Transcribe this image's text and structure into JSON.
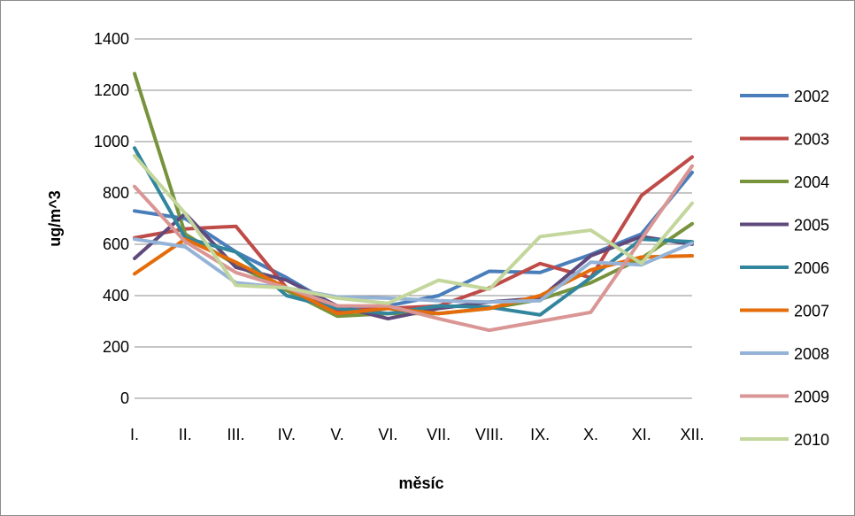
{
  "chart_data": {
    "type": "line",
    "title": "",
    "xlabel": "měsíc",
    "ylabel": "ug/m^3",
    "ylim": [
      0,
      1400
    ],
    "yticks": [
      "0",
      "200",
      "400",
      "600",
      "800",
      "1000",
      "1200",
      "1400"
    ],
    "grid": true,
    "legend_position": "right",
    "categories": [
      "I.",
      "II.",
      "III.",
      "IV.",
      "V.",
      "VI.",
      "VII.",
      "VIII.",
      "IX.",
      "X.",
      "XI.",
      "XII."
    ],
    "series": [
      {
        "name": "2002",
        "color": "#4a7ebb",
        "values": [
          730,
          700,
          570,
          470,
          355,
          360,
          400,
          495,
          490,
          560,
          640,
          880
        ]
      },
      {
        "name": "2003",
        "color": "#be4b48",
        "values": [
          625,
          660,
          670,
          430,
          340,
          350,
          360,
          430,
          525,
          470,
          790,
          940
        ]
      },
      {
        "name": "2004",
        "color": "#77933c",
        "values": [
          1265,
          640,
          520,
          420,
          320,
          330,
          330,
          350,
          385,
          450,
          545,
          680
        ]
      },
      {
        "name": "2005",
        "color": "#604a7b",
        "values": [
          545,
          720,
          510,
          460,
          360,
          310,
          350,
          375,
          390,
          555,
          630,
          600
        ]
      },
      {
        "name": "2006",
        "color": "#31859c",
        "values": [
          975,
          625,
          570,
          400,
          350,
          330,
          360,
          355,
          325,
          470,
          620,
          610
        ]
      },
      {
        "name": "2007",
        "color": "#e46c0a",
        "values": [
          485,
          620,
          530,
          430,
          330,
          350,
          330,
          350,
          400,
          500,
          550,
          555
        ]
      },
      {
        "name": "2008",
        "color": "#95b3d7",
        "values": [
          620,
          590,
          450,
          430,
          395,
          390,
          380,
          375,
          380,
          530,
          520,
          605
        ]
      },
      {
        "name": "2009",
        "color": "#d99694",
        "values": [
          825,
          610,
          490,
          430,
          360,
          360,
          310,
          265,
          300,
          335,
          620,
          905
        ]
      },
      {
        "name": "2010",
        "color": "#c3d69b",
        "values": [
          945,
          720,
          440,
          430,
          390,
          370,
          460,
          425,
          630,
          655,
          525,
          760
        ]
      }
    ]
  }
}
